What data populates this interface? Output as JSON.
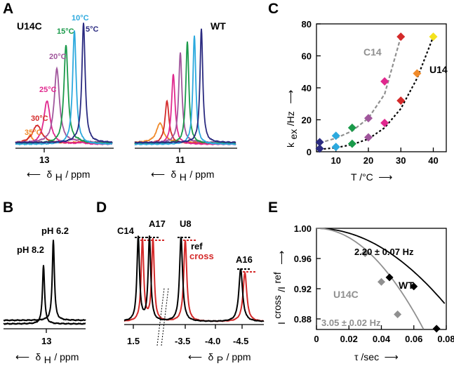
{
  "colors": {
    "red": "#d42a2a",
    "gray": "#909090",
    "t5": "#2a2a80",
    "t10": "#2ca9de",
    "t15": "#1a9a4a",
    "t20": "#a0569c",
    "t25": "#e0288e",
    "t30": "#d42a2a",
    "t35": "#f08a2a",
    "t40": "#f4e21c"
  },
  "panels": {
    "A": {
      "label": "A",
      "u14c": {
        "name": "U14C",
        "temps": [
          "5°C",
          "10°C",
          "15°C",
          "20°C",
          "25°C",
          "30°C",
          "35°C"
        ],
        "tick": "13",
        "xlabel_arrow": "⟵",
        "xlabel_delta": "δ",
        "xlabel_sub": "H",
        "xlabel_unit": " / ppm"
      },
      "wt": {
        "name": "WT",
        "tick": "11",
        "xlabel_arrow": "⟵",
        "xlabel_delta": "δ",
        "xlabel_sub": "H",
        "xlabel_unit": " / ppm"
      }
    },
    "B": {
      "label": "B",
      "ph_high": "pH 6.2",
      "ph_low": "pH 8.2",
      "tick": "13",
      "xlabel_arrow": "⟵",
      "xlabel_delta": "δ",
      "xlabel_sub": "H",
      "xlabel_unit": " / ppm"
    },
    "C": {
      "label": "C"
    },
    "D": {
      "label": "D",
      "peaks": [
        "C14",
        "A17",
        "U8",
        "A16"
      ],
      "legend_ref": "ref",
      "legend_cross": "cross",
      "ticks": [
        "1.5",
        "-3.5",
        "-4.0",
        "-4.5"
      ],
      "xlabel_arrow": "⟵",
      "xlabel_delta": "δ",
      "xlabel_sub": "P",
      "xlabel_unit": " / ppm"
    },
    "E": {
      "label": "E"
    }
  },
  "chart_data": [
    {
      "panel": "C",
      "type": "scatter",
      "title": "",
      "xlabel_base": "T /°C",
      "xlabel_arrow": "⟶",
      "ylabel_base": "k",
      "ylabel_sub": "ex",
      "ylabel_unit": " /Hz",
      "ylabel_arrow": "⟶",
      "xlim": [
        4,
        44
      ],
      "ylim": [
        0,
        80
      ],
      "xticks": [
        10,
        20,
        30,
        40
      ],
      "yticks": [
        0,
        20,
        40,
        60,
        80
      ],
      "series": [
        {
          "name": "C14",
          "fit_style": "dashed",
          "points": [
            {
              "x": 5,
              "y": 6,
              "c": "t5"
            },
            {
              "x": 10,
              "y": 10,
              "c": "t10"
            },
            {
              "x": 15,
              "y": 15,
              "c": "t15"
            },
            {
              "x": 20,
              "y": 21,
              "c": "t20"
            },
            {
              "x": 25,
              "y": 44,
              "c": "t25"
            },
            {
              "x": 30,
              "y": 72,
              "c": "t30"
            }
          ],
          "fit": [
            [
              5,
              5.5
            ],
            [
              10,
              8.5
            ],
            [
              15,
              13
            ],
            [
              20,
              21
            ],
            [
              25,
              36
            ],
            [
              30,
              72
            ]
          ]
        },
        {
          "name": "U14",
          "fit_style": "dotted",
          "points": [
            {
              "x": 5,
              "y": 2,
              "c": "t5"
            },
            {
              "x": 10,
              "y": 3,
              "c": "t10"
            },
            {
              "x": 15,
              "y": 5,
              "c": "t15"
            },
            {
              "x": 20,
              "y": 9,
              "c": "t20"
            },
            {
              "x": 25,
              "y": 18,
              "c": "t25"
            },
            {
              "x": 30,
              "y": 32,
              "c": "t30"
            },
            {
              "x": 35,
              "y": 49,
              "c": "t35"
            },
            {
              "x": 40,
              "y": 72,
              "c": "t40"
            }
          ],
          "fit": [
            [
              5,
              1.5
            ],
            [
              10,
              2.5
            ],
            [
              15,
              4.5
            ],
            [
              20,
              8
            ],
            [
              25,
              15
            ],
            [
              30,
              27
            ],
            [
              35,
              46
            ],
            [
              40,
              72
            ]
          ]
        }
      ]
    },
    {
      "panel": "E",
      "type": "scatter",
      "title": "",
      "xlabel_base": "τ /sec",
      "xlabel_arrow": "⟶",
      "ylabel_base": "I",
      "ylabel_sup1": "cross",
      "ylabel_sep": "/I",
      "ylabel_sup2": "ref",
      "ylabel_arrow": "⟶",
      "xlim": [
        0,
        0.08
      ],
      "ylim": [
        0.866,
        1.0
      ],
      "xticks": [
        "0",
        "0.02",
        "0.04",
        "0.06",
        "0.08"
      ],
      "yticks": [
        "0.88",
        "0.92",
        "0.96",
        "1.00"
      ],
      "series": [
        {
          "name": "WT",
          "fit_label": "2.20 ± 0.07 Hz",
          "color": "#000000",
          "points": [
            [
              0.045,
              0.935
            ],
            [
              0.06,
              0.923
            ],
            [
              0.074,
              0.867
            ]
          ],
          "fit_k": 2.2
        },
        {
          "name": "U14C",
          "fit_label": "3.05 ± 0.02 Hz",
          "color": "#909090",
          "points": [
            [
              0.03,
              0.967
            ],
            [
              0.04,
              0.929
            ],
            [
              0.05,
              0.886
            ]
          ],
          "fit_k": 3.05
        }
      ]
    }
  ]
}
